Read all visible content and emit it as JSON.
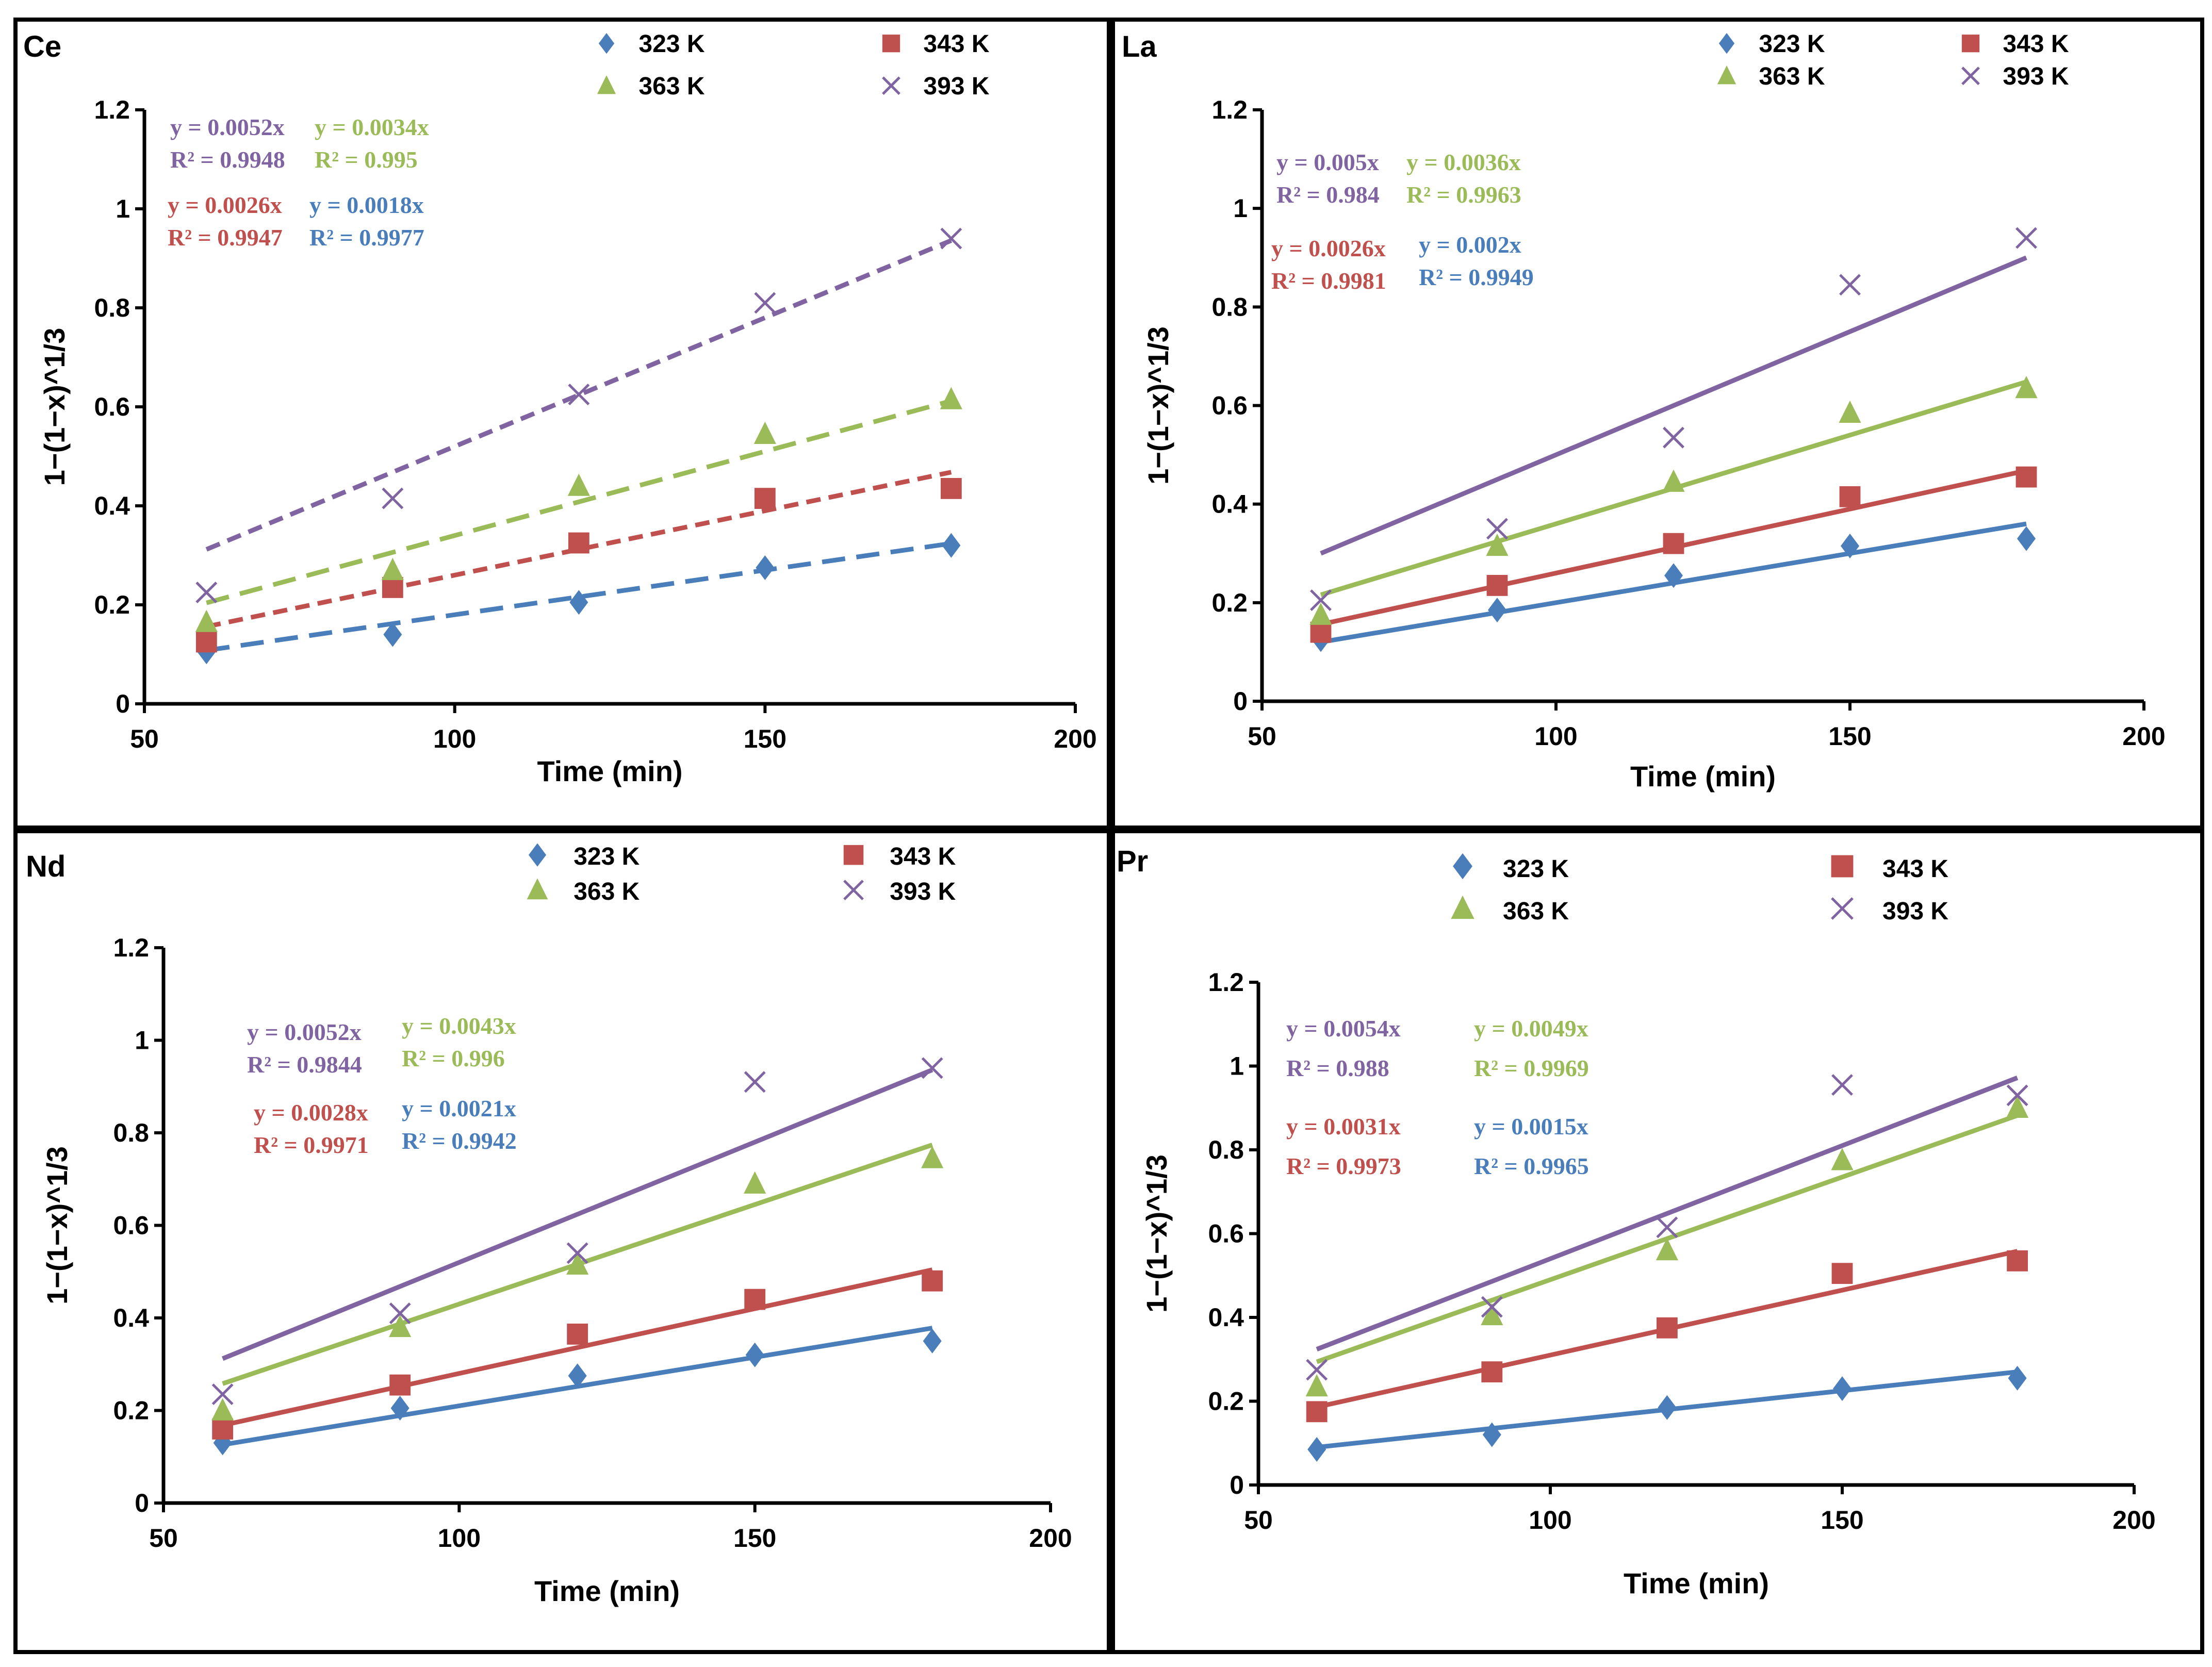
{
  "colors": {
    "323 K": "#4a7ebb",
    "343 K": "#c0504d",
    "363 K": "#9bbb59",
    "393 K": "#8064a2"
  },
  "markers": {
    "323 K": "diamond",
    "343 K": "square",
    "363 K": "triangle",
    "393 K": "x-cross"
  },
  "chart_data": [
    {
      "type": "scatter",
      "title": "Ce",
      "xlabel": "Time (min)",
      "ylabel": "1−(1−x)^1/3",
      "xlim": [
        50,
        200
      ],
      "ylim": [
        0,
        1.2
      ],
      "xticks": [
        "50",
        "100",
        "150",
        "200"
      ],
      "yticks": [
        "0",
        "0.2",
        "0.4",
        "0.6",
        "0.8",
        "1",
        "1.2"
      ],
      "grid": false,
      "legend": "top",
      "trendline_style": "dashed",
      "x": [
        60,
        90,
        120,
        150,
        180
      ],
      "series": [
        {
          "name": "323 K",
          "values": [
            0.105,
            0.14,
            0.205,
            0.275,
            0.32
          ],
          "fit": "y = 0.0018x",
          "slope": 0.0018,
          "r2": "R² = 0.9977"
        },
        {
          "name": "343 K",
          "values": [
            0.125,
            0.235,
            0.325,
            0.415,
            0.435
          ],
          "fit": "y = 0.0026x",
          "slope": 0.0026,
          "r2": "R² = 0.9947"
        },
        {
          "name": "363 K",
          "values": [
            0.165,
            0.27,
            0.44,
            0.545,
            0.615
          ],
          "fit": "y = 0.0034x",
          "slope": 0.0034,
          "r2": "R² = 0.995"
        },
        {
          "name": "393 K",
          "values": [
            0.225,
            0.415,
            0.625,
            0.81,
            0.94
          ],
          "fit": "y = 0.0052x",
          "slope": 0.0052,
          "r2": "R² = 0.9948"
        }
      ]
    },
    {
      "type": "scatter",
      "title": "La",
      "xlabel": "Time (min)",
      "ylabel": "1−(1−x)^1/3",
      "xlim": [
        50,
        200
      ],
      "ylim": [
        0,
        1.2
      ],
      "xticks": [
        "50",
        "100",
        "150",
        "200"
      ],
      "yticks": [
        "0",
        "0.2",
        "0.4",
        "0.6",
        "0.8",
        "1",
        "1.2"
      ],
      "grid": false,
      "legend": "top",
      "trendline_style": "solid",
      "x": [
        60,
        90,
        120,
        150,
        180
      ],
      "series": [
        {
          "name": "323 K",
          "values": [
            0.125,
            0.185,
            0.255,
            0.315,
            0.33
          ],
          "fit": "y = 0.002x",
          "slope": 0.002,
          "r2": "R² = 0.9949"
        },
        {
          "name": "343 K",
          "values": [
            0.14,
            0.235,
            0.32,
            0.415,
            0.455
          ],
          "fit": "y = 0.0026x",
          "slope": 0.0026,
          "r2": "R² = 0.9981"
        },
        {
          "name": "363 K",
          "values": [
            0.175,
            0.315,
            0.445,
            0.585,
            0.635
          ],
          "fit": "y = 0.0036x",
          "slope": 0.0036,
          "r2": "R² = 0.9963"
        },
        {
          "name": "393 K",
          "values": [
            0.205,
            0.35,
            0.535,
            0.845,
            0.94
          ],
          "fit": "y = 0.005x",
          "slope": 0.005,
          "r2": "R² = 0.984"
        }
      ]
    },
    {
      "type": "scatter",
      "title": "Nd",
      "xlabel": "Time (min)",
      "ylabel": "1−(1−x)^1/3",
      "xlim": [
        50,
        200
      ],
      "ylim": [
        0,
        1.2
      ],
      "xticks": [
        "50",
        "100",
        "150",
        "200"
      ],
      "yticks": [
        "0",
        "0.2",
        "0.4",
        "0.6",
        "0.8",
        "1",
        "1.2"
      ],
      "grid": false,
      "legend": "top",
      "trendline_style": "solid",
      "x": [
        60,
        90,
        120,
        150,
        180
      ],
      "series": [
        {
          "name": "323 K",
          "values": [
            0.13,
            0.205,
            0.275,
            0.32,
            0.35
          ],
          "fit": "y = 0.0021x",
          "slope": 0.0021,
          "r2": "R² = 0.9942"
        },
        {
          "name": "343 K",
          "values": [
            0.16,
            0.255,
            0.365,
            0.44,
            0.48
          ],
          "fit": "y = 0.0028x",
          "slope": 0.0028,
          "r2": "R² = 0.9971"
        },
        {
          "name": "363 K",
          "values": [
            0.2,
            0.38,
            0.515,
            0.69,
            0.745
          ],
          "fit": "y = 0.0043x",
          "slope": 0.0043,
          "r2": "R² = 0.996"
        },
        {
          "name": "393 K",
          "values": [
            0.235,
            0.41,
            0.54,
            0.91,
            0.94
          ],
          "fit": "y = 0.0052x",
          "slope": 0.0052,
          "r2": "R² = 0.9844"
        }
      ]
    },
    {
      "type": "scatter",
      "title": "Pr",
      "xlabel": "Time (min)",
      "ylabel": "1−(1−x)^1/3",
      "xlim": [
        50,
        200
      ],
      "ylim": [
        0,
        1.2
      ],
      "xticks": [
        "50",
        "100",
        "150",
        "200"
      ],
      "yticks": [
        "0",
        "0.2",
        "0.4",
        "0.6",
        "0.8",
        "1",
        "1.2"
      ],
      "grid": false,
      "legend": "top",
      "trendline_style": "solid",
      "x": [
        60,
        90,
        120,
        150,
        180
      ],
      "series": [
        {
          "name": "323 K",
          "values": [
            0.085,
            0.12,
            0.185,
            0.23,
            0.255
          ],
          "fit": "y = 0.0015x",
          "slope": 0.0015,
          "r2": "R² = 0.9965"
        },
        {
          "name": "343 K",
          "values": [
            0.175,
            0.27,
            0.375,
            0.505,
            0.535
          ],
          "fit": "y = 0.0031x",
          "slope": 0.0031,
          "r2": "R² = 0.9973"
        },
        {
          "name": "363 K",
          "values": [
            0.235,
            0.405,
            0.56,
            0.775,
            0.9
          ],
          "fit": "y = 0.0049x",
          "slope": 0.0049,
          "r2": "R² = 0.9969"
        },
        {
          "name": "393 K",
          "values": [
            0.275,
            0.425,
            0.615,
            0.955,
            0.93
          ],
          "fit": "y = 0.0054x",
          "slope": 0.0054,
          "r2": "R² = 0.988"
        }
      ]
    }
  ]
}
